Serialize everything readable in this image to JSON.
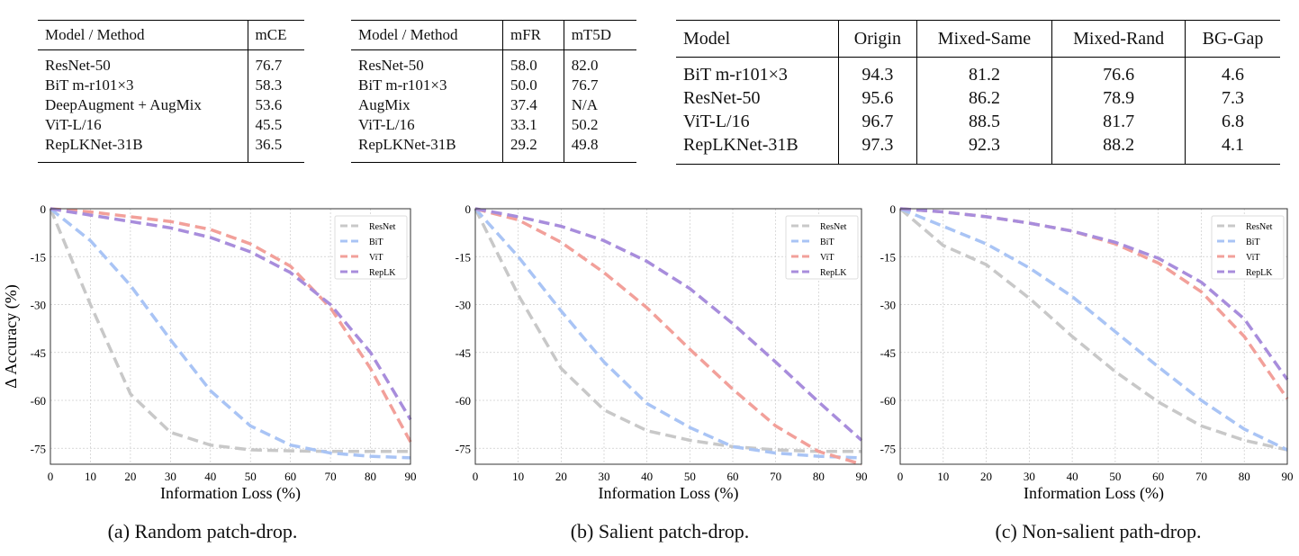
{
  "table1": {
    "headers": [
      "Model / Method",
      "mCE"
    ],
    "rows": [
      [
        "ResNet-50",
        "76.7"
      ],
      [
        "BiT m-r101×3",
        "58.3"
      ],
      [
        "DeepAugment + AugMix",
        "53.6"
      ],
      [
        "ViT-L/16",
        "45.5"
      ],
      [
        "RepLKNet-31B",
        "36.5"
      ]
    ]
  },
  "table2": {
    "headers": [
      "Model / Method",
      "mFR",
      "mT5D"
    ],
    "rows": [
      [
        "ResNet-50",
        "58.0",
        "82.0"
      ],
      [
        "BiT m-r101×3",
        "50.0",
        "76.7"
      ],
      [
        "AugMix",
        "37.4",
        "N/A"
      ],
      [
        "ViT-L/16",
        "33.1",
        "50.2"
      ],
      [
        "RepLKNet-31B",
        "29.2",
        "49.8"
      ]
    ]
  },
  "table3": {
    "headers": [
      "Model",
      "Origin",
      "Mixed-Same",
      "Mixed-Rand",
      "BG-Gap"
    ],
    "rows": [
      [
        "BiT m-r101×3",
        "94.3",
        "81.2",
        "76.6",
        "4.6"
      ],
      [
        "ResNet-50",
        "95.6",
        "86.2",
        "78.9",
        "7.3"
      ],
      [
        "ViT-L/16",
        "96.7",
        "88.5",
        "81.7",
        "6.8"
      ],
      [
        "RepLKNet-31B",
        "97.3",
        "92.3",
        "88.2",
        "4.1"
      ]
    ]
  },
  "chart_data": [
    {
      "type": "line",
      "caption": "(a) Random patch-drop.",
      "xlabel": "Information Loss (%)",
      "ylabel": "Δ Accuracy (%)",
      "xlim": [
        0,
        90
      ],
      "ylim": [
        -80,
        0
      ],
      "xticks": [
        0,
        10,
        20,
        30,
        40,
        50,
        60,
        70,
        80,
        90
      ],
      "yticks": [
        0,
        -15,
        -30,
        -45,
        -60,
        -75
      ],
      "grid": true,
      "legend": "top-right",
      "x": [
        0,
        10,
        20,
        30,
        40,
        50,
        60,
        70,
        80,
        90
      ],
      "series": [
        {
          "name": "ResNet",
          "color": "#c8c8c8",
          "values": [
            0,
            -30,
            -58,
            -70,
            -74,
            -75.5,
            -75.8,
            -76,
            -76,
            -76
          ]
        },
        {
          "name": "BiT",
          "color": "#a9c4f5",
          "values": [
            0,
            -10,
            -24,
            -41,
            -57,
            -68,
            -74,
            -76.5,
            -77.5,
            -78
          ]
        },
        {
          "name": "ViT",
          "color": "#f2a09a",
          "values": [
            0,
            -1,
            -2.5,
            -4,
            -6.5,
            -11,
            -18,
            -31,
            -50,
            -73
          ]
        },
        {
          "name": "RepLK",
          "color": "#a88ddc",
          "values": [
            0,
            -2,
            -4,
            -6,
            -9,
            -13.5,
            -20,
            -30,
            -45,
            -66
          ]
        }
      ]
    },
    {
      "type": "line",
      "caption": "(b) Salient patch-drop.",
      "xlabel": "Information Loss (%)",
      "ylabel": "",
      "xlim": [
        0,
        90
      ],
      "ylim": [
        -80,
        0
      ],
      "xticks": [
        0,
        10,
        20,
        30,
        40,
        50,
        60,
        70,
        80,
        90
      ],
      "yticks": [
        0,
        -15,
        -30,
        -45,
        -60,
        -75
      ],
      "grid": true,
      "legend": "top-right",
      "x": [
        0,
        10,
        20,
        30,
        40,
        50,
        60,
        70,
        80,
        90
      ],
      "series": [
        {
          "name": "ResNet",
          "color": "#c8c8c8",
          "values": [
            0,
            -27,
            -50,
            -63,
            -69.5,
            -72.5,
            -74.5,
            -75.5,
            -76,
            -76
          ]
        },
        {
          "name": "BiT",
          "color": "#a9c4f5",
          "values": [
            0,
            -15,
            -32,
            -48,
            -61,
            -68.5,
            -74.5,
            -76.5,
            -77.5,
            -78
          ]
        },
        {
          "name": "ViT",
          "color": "#f2a09a",
          "values": [
            0,
            -3.5,
            -10.5,
            -20,
            -31,
            -44,
            -56.5,
            -68,
            -76,
            -80
          ]
        },
        {
          "name": "RepLK",
          "color": "#a88ddc",
          "values": [
            0,
            -2.5,
            -5.5,
            -10,
            -16.5,
            -25,
            -36,
            -48,
            -60.5,
            -72.5
          ]
        }
      ]
    },
    {
      "type": "line",
      "caption": "(c) Non-salient path-drop.",
      "xlabel": "Information Loss (%)",
      "ylabel": "",
      "xlim": [
        0,
        90
      ],
      "ylim": [
        -80,
        0
      ],
      "xticks": [
        0,
        10,
        20,
        30,
        40,
        50,
        60,
        70,
        80,
        90
      ],
      "yticks": [
        0,
        -15,
        -30,
        -45,
        -60,
        -75
      ],
      "grid": true,
      "legend": "top-right",
      "x": [
        0,
        10,
        20,
        30,
        40,
        50,
        60,
        70,
        80,
        90
      ],
      "series": [
        {
          "name": "ResNet",
          "color": "#c8c8c8",
          "values": [
            0,
            -11.5,
            -17.5,
            -28,
            -40,
            -51,
            -60.5,
            -68,
            -72.5,
            -75.5
          ]
        },
        {
          "name": "BiT",
          "color": "#a9c4f5",
          "values": [
            0,
            -5.5,
            -11,
            -18.5,
            -27.5,
            -38.5,
            -49.5,
            -60,
            -69,
            -75.5
          ]
        },
        {
          "name": "ViT",
          "color": "#f2a09a",
          "values": [
            0,
            -1,
            -2.5,
            -4.5,
            -7,
            -11,
            -17,
            -26,
            -40,
            -59.5
          ]
        },
        {
          "name": "RepLK",
          "color": "#a88ddc",
          "values": [
            0,
            -1,
            -2.5,
            -4.5,
            -7,
            -10.5,
            -15.5,
            -23,
            -34.5,
            -53.5
          ]
        }
      ]
    }
  ]
}
